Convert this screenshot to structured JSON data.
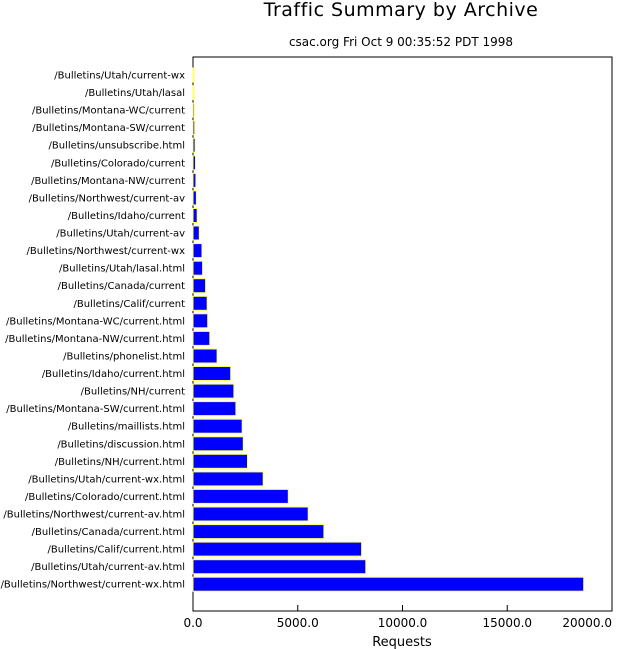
{
  "chart_data": {
    "type": "bar",
    "orientation": "horizontal",
    "title": "Traffic Summary by Archive",
    "subtitle": "csac.org Fri Oct  9 00:35:52 PDT 1998",
    "xlabel": "Requests",
    "ylabel": "",
    "xlim": [
      0,
      20000
    ],
    "x_ticks": [
      "0.0",
      "5000.0",
      "10000.0",
      "15000.0",
      "20000.0"
    ],
    "grid": false,
    "bar_color": "#0000ff",
    "bar_edge_color": "#ffff66",
    "categories": [
      "/Bulletins/Utah/current-wx",
      "/Bulletins/Utah/lasal",
      "/Bulletins/Montana-WC/current",
      "/Bulletins/Montana-SW/current",
      "/Bulletins/unsubscribe.html",
      "/Bulletins/Colorado/current",
      "/Bulletins/Montana-NW/current",
      "/Bulletins/Northwest/current-av",
      "/Bulletins/Idaho/current",
      "/Bulletins/Utah/current-av",
      "/Bulletins/Northwest/current-wx",
      "/Bulletins/Utah/lasal.html",
      "/Bulletins/Canada/current",
      "/Bulletins/Calif/current",
      "/Bulletins/Montana-WC/current.html",
      "/Bulletins/Montana-NW/current.html",
      "/Bulletins/phonelist.html",
      "/Bulletins/Idaho/current.html",
      "/Bulletins/NH/current",
      "/Bulletins/Montana-SW/current.html",
      "/Bulletins/maillists.html",
      "/Bulletins/discussion.html",
      "/Bulletins/NH/current.html",
      "/Bulletins/Utah/current-wx.html",
      "/Bulletins/Colorado/current.html",
      "/Bulletins/Northwest/current-av.html",
      "/Bulletins/Canada/current.html",
      "/Bulletins/Calif/current.html",
      "/Bulletins/Utah/current-av.html",
      "/Bulletins/Northwest/current-wx.html"
    ],
    "values": [
      20,
      40,
      60,
      80,
      100,
      120,
      140,
      160,
      200,
      300,
      430,
      460,
      600,
      680,
      700,
      800,
      1150,
      1800,
      1950,
      2050,
      2350,
      2400,
      2600,
      3350,
      4550,
      5500,
      6250,
      8050,
      8250,
      18650
    ]
  }
}
